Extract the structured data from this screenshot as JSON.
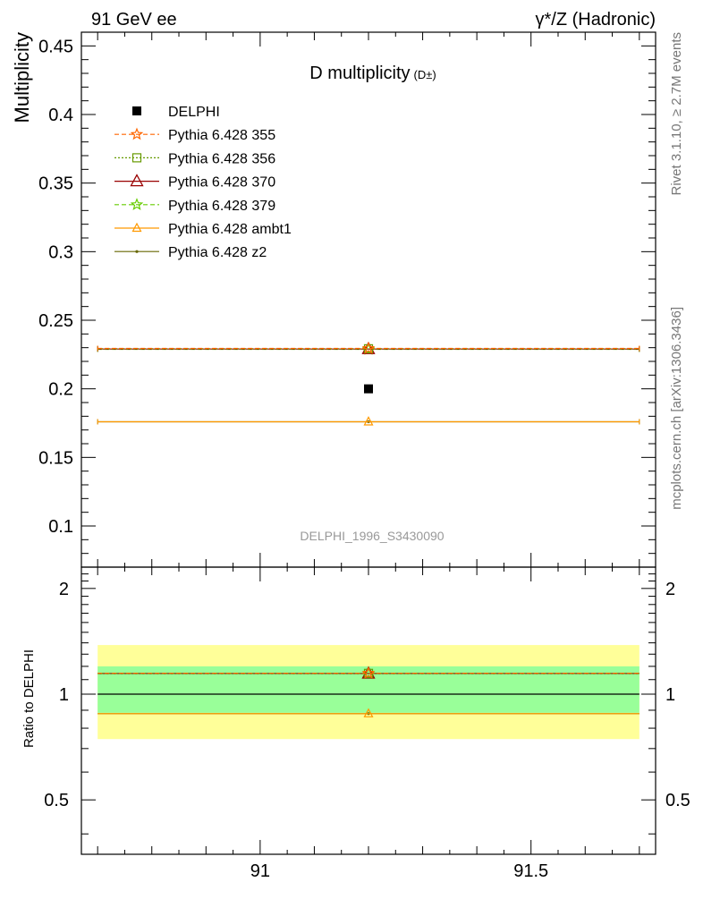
{
  "header": {
    "left": "91 GeV ee",
    "right": "γ*/Z (Hadronic)"
  },
  "side_text": {
    "rivet": "Rivet 3.1.10, ≥ 2.7M events",
    "mcplots": "mcplots.cern.ch [arXiv:1306.3436]"
  },
  "watermark": "DELPHI_1996_S3430090",
  "chart_data": {
    "type": "scatter",
    "title_main": "D multiplicity",
    "title_sub": "(D±)",
    "ylabel": "Multiplicity",
    "ratio_ylabel": "Ratio to DELPHI",
    "xlim": [
      90.67,
      91.73
    ],
    "ylim": [
      0.07,
      0.46
    ],
    "ratio_ylim": [
      0.35,
      2.3
    ],
    "x_ticks": [
      91,
      91.5
    ],
    "x_tick_labels": [
      "91",
      "91.5"
    ],
    "y_ticks": [
      0.1,
      0.15,
      0.2,
      0.25,
      0.3,
      0.35,
      0.4,
      0.45
    ],
    "y_tick_labels": [
      "0.1",
      "0.15",
      "0.2",
      "0.25",
      "0.3",
      "0.35",
      "0.4",
      "0.45"
    ],
    "ratio_ticks": [
      0.5,
      1,
      2
    ],
    "ratio_tick_labels": [
      "0.5",
      "1",
      "2"
    ],
    "ratio_bands": {
      "yellow": [
        0.745,
        1.38
      ],
      "green": [
        0.885,
        1.2
      ]
    },
    "data": {
      "name": "DELPHI",
      "x": 91.2,
      "y": 0.2,
      "color": "#000000",
      "marker": "square"
    },
    "series": [
      {
        "name": "Pythia 6.428 355",
        "x": 91.2,
        "y": 0.2295,
        "xmin": 90.7,
        "xmax": 91.7,
        "color": "#ff6600",
        "dash": "5,3",
        "marker": "star"
      },
      {
        "name": "Pythia 6.428 356",
        "x": 91.2,
        "y": 0.2292,
        "xmin": 90.7,
        "xmax": 91.7,
        "color": "#669900",
        "dash": "2,2",
        "marker": "open-square"
      },
      {
        "name": "Pythia 6.428 370",
        "x": 91.2,
        "y": 0.229,
        "xmin": 90.7,
        "xmax": 91.7,
        "color": "#990000",
        "dash": "",
        "marker": "open-triangle"
      },
      {
        "name": "Pythia 6.428 379",
        "x": 91.2,
        "y": 0.2288,
        "xmin": 90.7,
        "xmax": 91.7,
        "color": "#66cc00",
        "dash": "5,3",
        "marker": "star"
      },
      {
        "name": "Pythia 6.428 ambt1",
        "x": 91.2,
        "y": 0.176,
        "xmin": 90.7,
        "xmax": 91.7,
        "color": "#ff9900",
        "dash": "",
        "marker": "open-triangle-small"
      },
      {
        "name": "Pythia 6.428 z2",
        "x": 91.2,
        "y": 0.176,
        "xmin": 90.7,
        "xmax": 91.7,
        "color": "#666600",
        "dash": "",
        "marker": "dot"
      }
    ]
  }
}
